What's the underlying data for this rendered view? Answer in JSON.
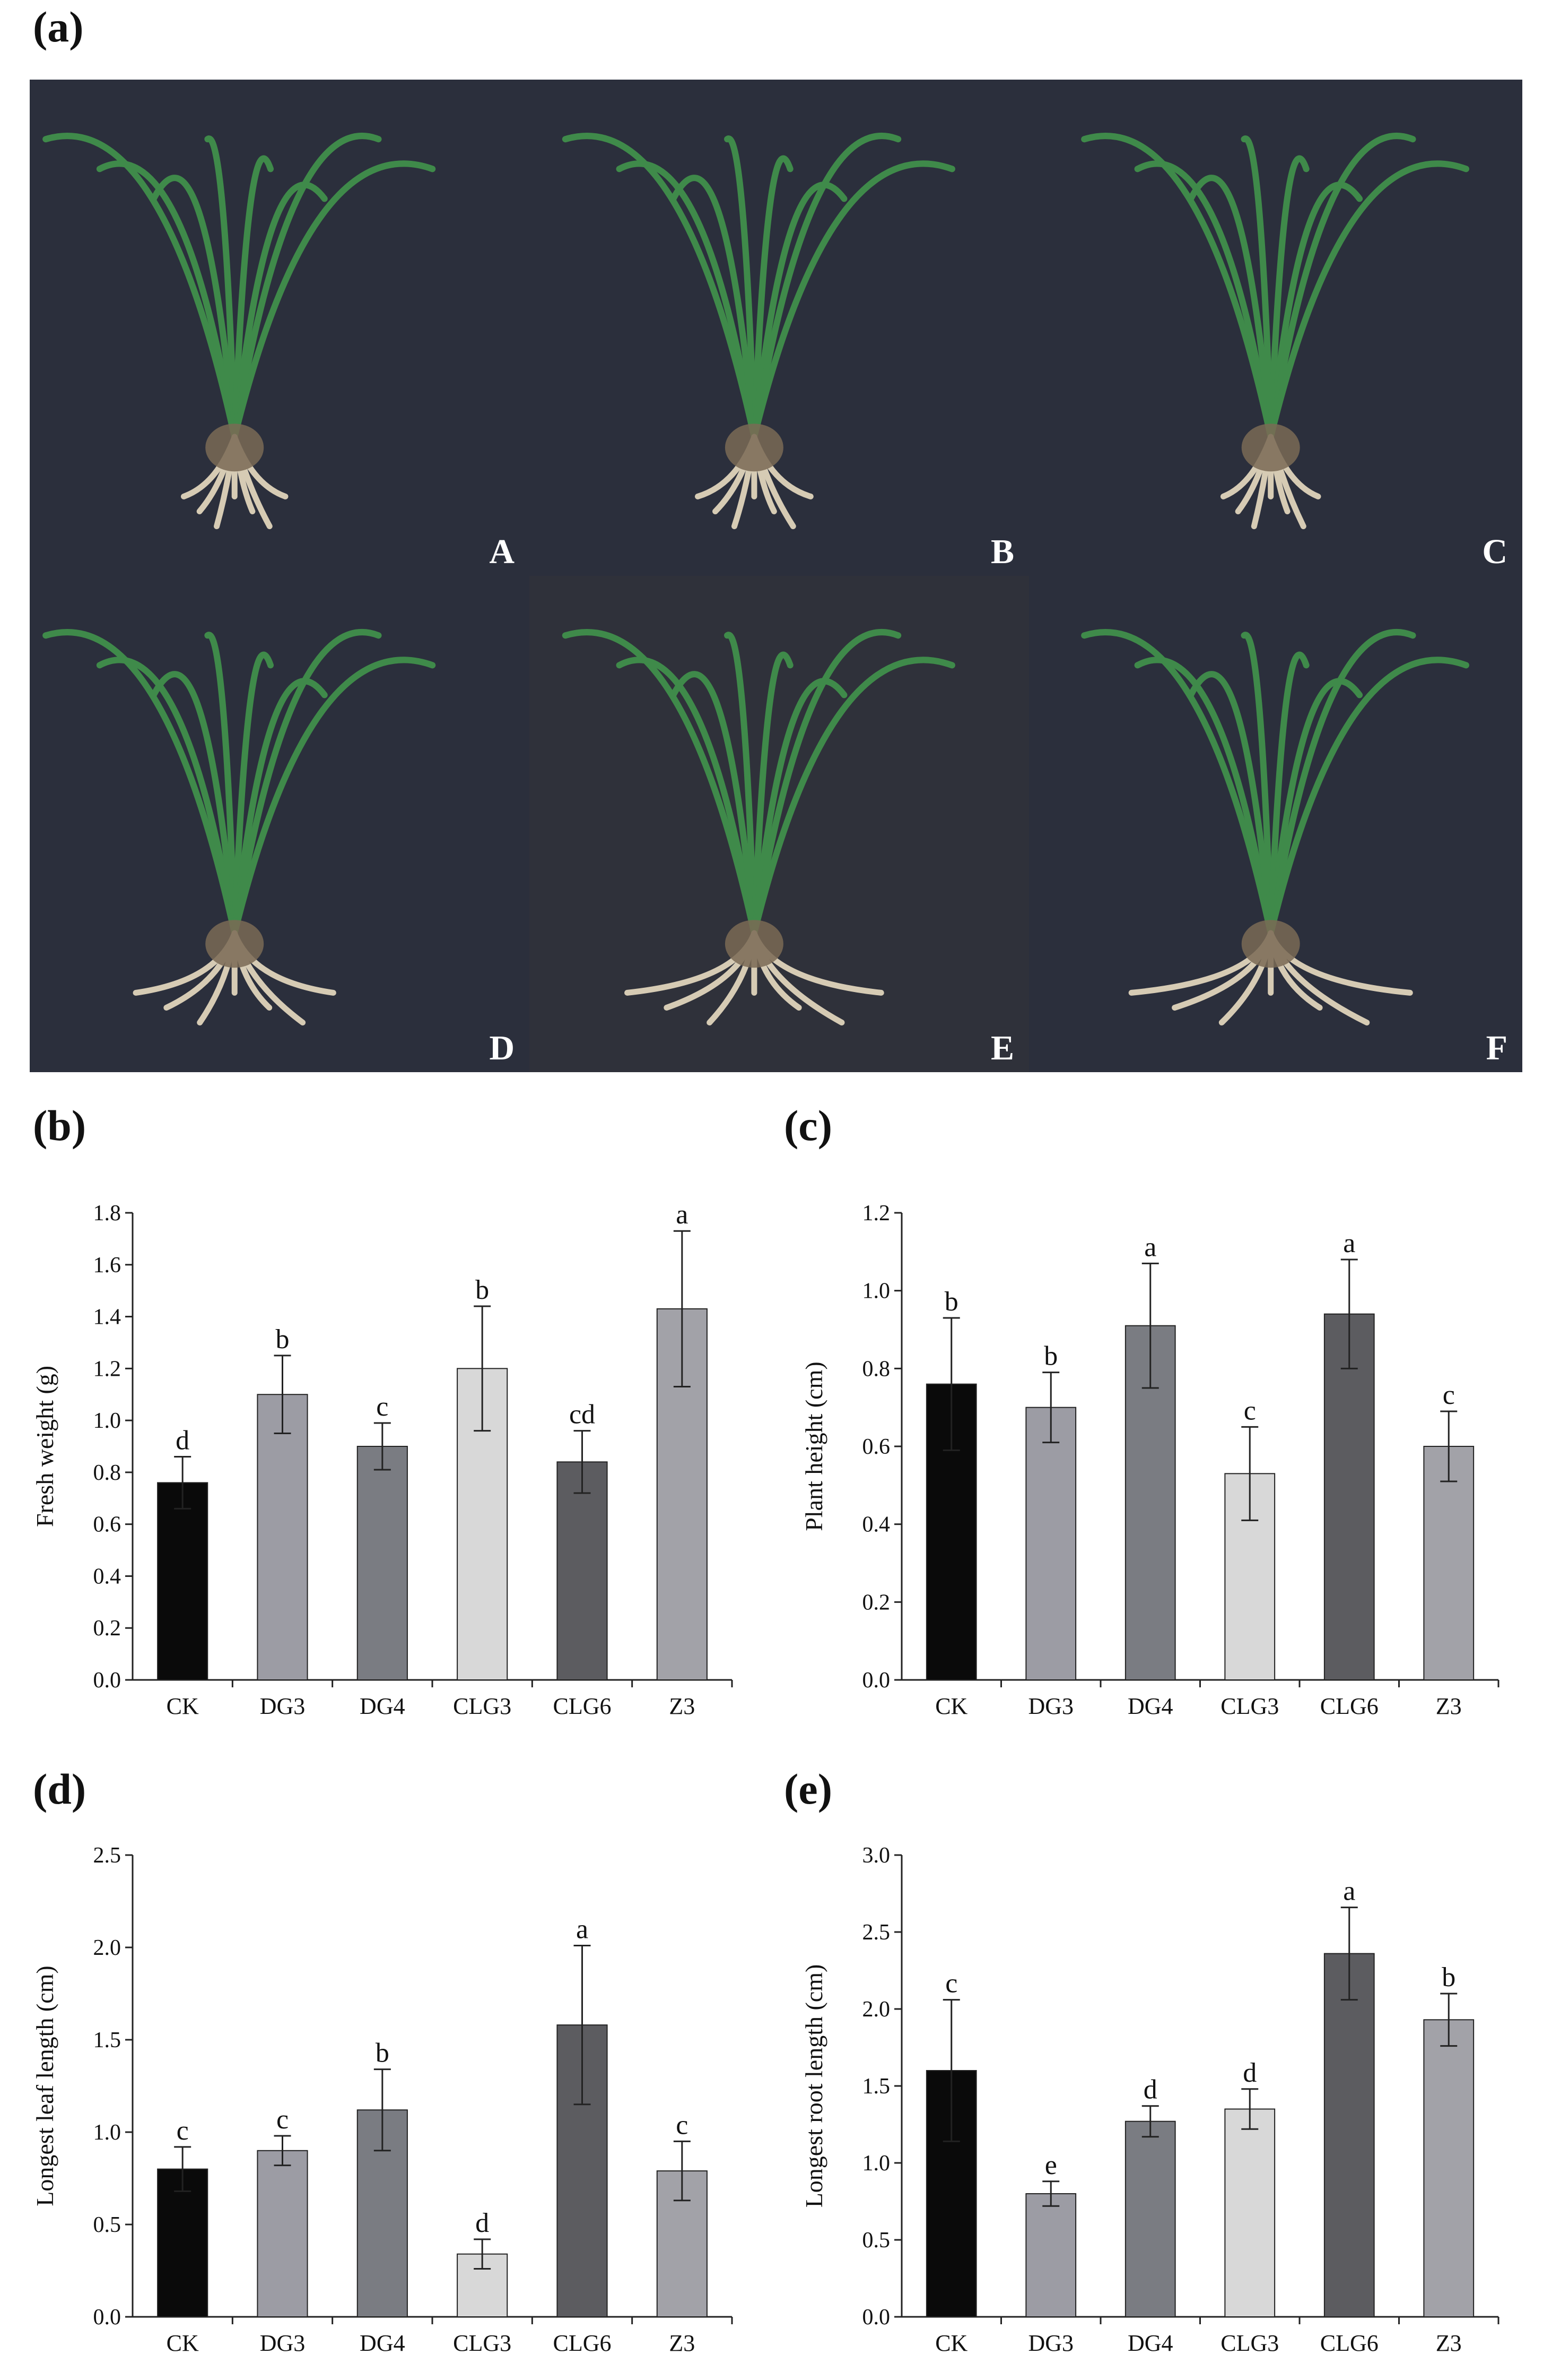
{
  "panel_labels": {
    "a": "(a)",
    "b": "(b)",
    "c": "(c)",
    "d": "(d)",
    "e": "(e)"
  },
  "photos": [
    {
      "label": "A"
    },
    {
      "label": "B"
    },
    {
      "label": "C"
    },
    {
      "label": "D"
    },
    {
      "label": "E"
    },
    {
      "label": "F"
    }
  ],
  "colors": {
    "photo_background": "#2b2f3c",
    "leaf": "#3f8a4a",
    "root": "#d6cbb4",
    "bars": [
      "#0a0a0a",
      "#9c9ca4",
      "#7a7c82",
      "#d8d8d8",
      "#5c5c60",
      "#a2a2a8"
    ]
  },
  "chart_data": [
    {
      "id": "b",
      "type": "bar",
      "categories": [
        "CK",
        "DG3",
        "DG4",
        "CLG3",
        "CLG6",
        "Z3"
      ],
      "values": [
        0.76,
        1.1,
        0.9,
        1.2,
        0.84,
        1.43
      ],
      "errors": [
        0.1,
        0.15,
        0.09,
        0.24,
        0.12,
        0.3
      ],
      "letters": [
        "d",
        "b",
        "c",
        "b",
        "cd",
        "a"
      ],
      "ylabel": "Fresh weight (g)",
      "ylim": [
        0,
        1.8
      ],
      "yticks": [
        "0.0",
        "0.2",
        "0.4",
        "0.6",
        "0.8",
        "1.0",
        "1.2",
        "1.4",
        "1.6",
        "1.8"
      ]
    },
    {
      "id": "c",
      "type": "bar",
      "categories": [
        "CK",
        "DG3",
        "DG4",
        "CLG3",
        "CLG6",
        "Z3"
      ],
      "values": [
        0.76,
        0.7,
        0.91,
        0.53,
        0.94,
        0.6
      ],
      "errors": [
        0.17,
        0.09,
        0.16,
        0.12,
        0.14,
        0.09
      ],
      "letters": [
        "b",
        "b",
        "a",
        "c",
        "a",
        "c"
      ],
      "ylabel": "Plant height (cm)",
      "ylim": [
        0,
        1.2
      ],
      "yticks": [
        "0.0",
        "0.2",
        "0.4",
        "0.6",
        "0.8",
        "1.0",
        "1.2"
      ]
    },
    {
      "id": "d",
      "type": "bar",
      "categories": [
        "CK",
        "DG3",
        "DG4",
        "CLG3",
        "CLG6",
        "Z3"
      ],
      "values": [
        0.8,
        0.9,
        1.12,
        0.34,
        1.58,
        0.79
      ],
      "errors": [
        0.12,
        0.08,
        0.22,
        0.08,
        0.43,
        0.16
      ],
      "letters": [
        "c",
        "c",
        "b",
        "d",
        "a",
        "c"
      ],
      "ylabel": "Longest leaf length (cm)",
      "ylim": [
        0,
        2.5
      ],
      "yticks": [
        "0.0",
        "0.5",
        "1.0",
        "1.5",
        "2.0",
        "2.5"
      ]
    },
    {
      "id": "e",
      "type": "bar",
      "categories": [
        "CK",
        "DG3",
        "DG4",
        "CLG3",
        "CLG6",
        "Z3"
      ],
      "values": [
        1.6,
        0.8,
        1.27,
        1.35,
        2.36,
        1.93
      ],
      "errors": [
        0.46,
        0.08,
        0.1,
        0.13,
        0.3,
        0.17
      ],
      "letters": [
        "c",
        "e",
        "d",
        "d",
        "a",
        "b"
      ],
      "ylabel": "Longest root length (cm)",
      "ylim": [
        0,
        3.0
      ],
      "yticks": [
        "0.0",
        "0.5",
        "1.0",
        "1.5",
        "2.0",
        "2.5",
        "3.0"
      ]
    }
  ]
}
